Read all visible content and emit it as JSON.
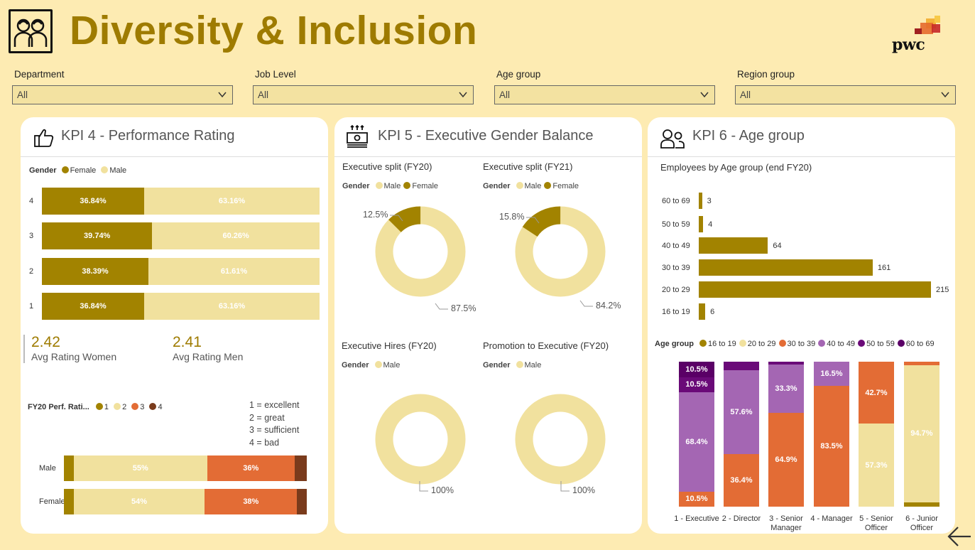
{
  "header": {
    "title": "Diversity & Inclusion",
    "brand": "pwc"
  },
  "slicers": [
    {
      "label": "Department",
      "value": "All"
    },
    {
      "label": "Job Level",
      "value": "All"
    },
    {
      "label": "Age group",
      "value": "All"
    },
    {
      "label": "Region group",
      "value": "All"
    }
  ],
  "colors": {
    "gold": "#a28300",
    "cream": "#f1e19e",
    "orange": "#e36c35",
    "brown": "#7a3b1c",
    "purple": "#a466b3",
    "darkpurple": "#6a0a78",
    "deeppurple": "#5a0066"
  },
  "kpi4": {
    "title": "KPI 4 - Performance Rating",
    "legend_title": "Gender",
    "avg_women_value": "2.42",
    "avg_women_label": "Avg Rating Women",
    "avg_men_value": "2.41",
    "avg_men_label": "Avg Rating Men",
    "perf_legend_title": "FY20 Perf. Rati...",
    "scale": [
      "1 = excellent",
      "2 = great",
      "3 = sufficient",
      "4 = bad"
    ]
  },
  "kpi5": {
    "title": "KPI 5 - Executive Gender Balance",
    "legend_title": "Gender"
  },
  "kpi6": {
    "title": "KPI 6 - Age group",
    "legend_title": "Age group"
  },
  "chart_data": [
    {
      "id": "gender_by_rating",
      "type": "bar",
      "orientation": "horizontal",
      "stacked": "100%",
      "categories": [
        "4",
        "3",
        "2",
        "1"
      ],
      "series": [
        {
          "name": "Female",
          "values": [
            36.84,
            39.74,
            38.39,
            36.84
          ],
          "labels": [
            "36.84%",
            "39.74%",
            "38.39%",
            "36.84%"
          ]
        },
        {
          "name": "Male",
          "values": [
            63.16,
            60.26,
            61.61,
            63.16
          ],
          "labels": [
            "63.16%",
            "60.26%",
            "61.61%",
            "63.16%"
          ]
        }
      ]
    },
    {
      "id": "rating_by_gender",
      "type": "bar",
      "orientation": "horizontal",
      "stacked": "100%",
      "categories": [
        "Male",
        "Female"
      ],
      "series": [
        {
          "name": "1",
          "values": [
            4,
            4
          ],
          "labels": [
            "",
            ""
          ]
        },
        {
          "name": "2",
          "values": [
            55,
            54
          ],
          "labels": [
            "55%",
            "54%"
          ]
        },
        {
          "name": "3",
          "values": [
            36,
            38
          ],
          "labels": [
            "36%",
            "38%"
          ]
        },
        {
          "name": "4",
          "values": [
            5,
            4
          ],
          "labels": [
            "",
            ""
          ]
        }
      ]
    },
    {
      "id": "exec_split_fy20",
      "type": "pie",
      "title": "Executive split (FY20)",
      "legend": [
        "Male",
        "Female"
      ],
      "slices": [
        {
          "name": "Female",
          "value": 12.5,
          "label": "12.5%"
        },
        {
          "name": "Male",
          "value": 87.5,
          "label": "87.5%"
        }
      ]
    },
    {
      "id": "exec_split_fy21",
      "type": "pie",
      "title": "Executive split (FY21)",
      "legend": [
        "Male",
        "Female"
      ],
      "slices": [
        {
          "name": "Female",
          "value": 15.8,
          "label": "15.8%"
        },
        {
          "name": "Male",
          "value": 84.2,
          "label": "84.2%"
        }
      ]
    },
    {
      "id": "exec_hires_fy20",
      "type": "pie",
      "title": "Executive Hires (FY20)",
      "legend": [
        "Male"
      ],
      "slices": [
        {
          "name": "Male",
          "value": 100,
          "label": "100%"
        }
      ]
    },
    {
      "id": "promo_exec_fy20",
      "type": "pie",
      "title": "Promotion to Executive (FY20)",
      "legend": [
        "Male"
      ],
      "slices": [
        {
          "name": "Male",
          "value": 100,
          "label": "100%"
        }
      ]
    },
    {
      "id": "employees_by_age",
      "type": "bar",
      "orientation": "horizontal",
      "title": "Employees by Age group (end FY20)",
      "categories": [
        "60 to 69",
        "50 to 59",
        "40 to 49",
        "30 to 39",
        "20 to 29",
        "16 to 19"
      ],
      "values": [
        3,
        4,
        64,
        161,
        215,
        6
      ]
    },
    {
      "id": "age_by_level",
      "type": "bar",
      "orientation": "vertical",
      "stacked": "100%",
      "categories": [
        "1 - Executive",
        "2 - Director",
        "3 - Senior Manager",
        "4 - Manager",
        "5 - Senior Officer",
        "6 - Junior Officer"
      ],
      "series": [
        {
          "name": "16 to 19",
          "values": [
            0,
            0,
            0,
            0,
            0,
            3
          ],
          "labels": [
            "",
            "",
            "",
            "",
            "",
            ""
          ]
        },
        {
          "name": "20 to 29",
          "values": [
            0,
            0,
            0,
            0,
            57.3,
            94.7
          ],
          "labels": [
            "",
            "",
            "",
            "",
            "57.3%",
            "94.7%"
          ]
        },
        {
          "name": "30 to 39",
          "values": [
            10.5,
            36.4,
            64.9,
            83.5,
            42.7,
            2.3
          ],
          "labels": [
            "10.5%",
            "36.4%",
            "64.9%",
            "83.5%",
            "42.7%",
            ""
          ]
        },
        {
          "name": "40 to 49",
          "values": [
            68.4,
            57.6,
            33.3,
            16.5,
            0,
            0
          ],
          "labels": [
            "68.4%",
            "57.6%",
            "33.3%",
            "16.5%",
            "",
            ""
          ]
        },
        {
          "name": "50 to 59",
          "values": [
            10.5,
            6,
            1.8,
            0,
            0,
            0
          ],
          "labels": [
            "10.5%",
            "",
            "",
            "",
            "",
            ""
          ]
        },
        {
          "name": "60 to 69",
          "values": [
            10.5,
            0,
            0,
            0,
            0,
            0
          ],
          "labels": [
            "10.5%",
            "",
            "",
            "",
            "",
            ""
          ]
        }
      ]
    }
  ]
}
